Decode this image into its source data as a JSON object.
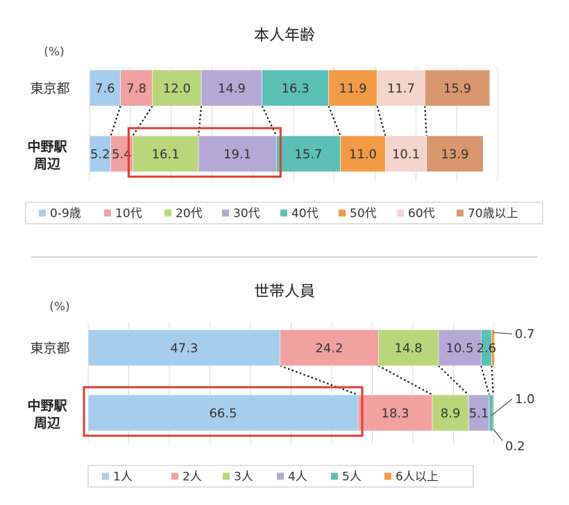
{
  "chart_data": [
    {
      "type": "bar",
      "stacked": "percent-horizontal",
      "title": "本人年齢",
      "unit_label": "(%)",
      "categories": [
        "東京都",
        "中野駅周辺"
      ],
      "category_lines": [
        [
          "東京都"
        ],
        [
          "中野駅",
          "周辺"
        ]
      ],
      "xlim": [
        0,
        100
      ],
      "grid": true,
      "legend_position": "bottom",
      "series": [
        {
          "name": "0-9歳",
          "color": "#A7CDEC",
          "values": [
            7.6,
            5.2
          ],
          "labels": [
            "7.6",
            "5.2"
          ]
        },
        {
          "name": "10代",
          "color": "#F0A1A0",
          "values": [
            7.8,
            5.4
          ],
          "labels": [
            "7.8",
            "5.4"
          ]
        },
        {
          "name": "20代",
          "color": "#B9D67A",
          "values": [
            12.0,
            16.1
          ],
          "labels": [
            "12.0",
            "16.1"
          ]
        },
        {
          "name": "30代",
          "color": "#B4A9D4",
          "values": [
            14.9,
            19.1
          ],
          "labels": [
            "14.9",
            "19.1"
          ]
        },
        {
          "name": "40代",
          "color": "#5BBFB6",
          "values": [
            16.3,
            15.7
          ],
          "labels": [
            "16.3",
            "15.7"
          ]
        },
        {
          "name": "50代",
          "color": "#F29A45",
          "values": [
            11.9,
            11.0
          ],
          "labels": [
            "11.9",
            "11.0"
          ]
        },
        {
          "name": "60代",
          "color": "#F4D5CB",
          "values": [
            11.7,
            10.1
          ],
          "labels": [
            "11.7",
            "10.1"
          ]
        },
        {
          "name": "70歳以上",
          "color": "#D9976F",
          "values": [
            15.9,
            13.9
          ],
          "labels": [
            "15.9",
            "13.9"
          ]
        }
      ],
      "highlight": {
        "row": 1,
        "series": [
          "20代",
          "30代"
        ],
        "color": "#E03C31"
      }
    },
    {
      "type": "bar",
      "stacked": "percent-horizontal",
      "title": "世帯人員",
      "unit_label": "(%)",
      "categories": [
        "東京都",
        "中野駅周辺"
      ],
      "category_lines": [
        [
          "東京都"
        ],
        [
          "中野駅",
          "周辺"
        ]
      ],
      "xlim": [
        0,
        100
      ],
      "grid": true,
      "legend_position": "bottom",
      "series": [
        {
          "name": "1人",
          "color": "#A7CDEC",
          "values": [
            47.3,
            66.5
          ],
          "labels": [
            "47.3",
            "66.5"
          ]
        },
        {
          "name": "2人",
          "color": "#F0A1A0",
          "values": [
            24.2,
            18.3
          ],
          "labels": [
            "24.2",
            "18.3"
          ]
        },
        {
          "name": "3人",
          "color": "#B9D67A",
          "values": [
            14.8,
            8.9
          ],
          "labels": [
            "14.8",
            "8.9"
          ]
        },
        {
          "name": "4人",
          "color": "#B4A9D4",
          "values": [
            10.5,
            5.1
          ],
          "labels": [
            "10.5",
            "5.1"
          ]
        },
        {
          "name": "5人",
          "color": "#5BBFB6",
          "values": [
            2.6,
            1.0
          ],
          "labels": [
            "2.6",
            "1.0"
          ]
        },
        {
          "name": "6人以上",
          "color": "#F29A45",
          "values": [
            0.7,
            0.2
          ],
          "labels": [
            "0.7",
            "0.2"
          ]
        }
      ],
      "callouts": [
        {
          "row": 0,
          "series": "6人以上",
          "text": "0.7"
        },
        {
          "row": 1,
          "series": "5人",
          "text": "1.0"
        },
        {
          "row": 1,
          "series": "6人以上",
          "text": "0.2"
        }
      ],
      "highlight": {
        "row": 1,
        "series": [
          "1人"
        ],
        "color": "#E03C31"
      }
    }
  ]
}
